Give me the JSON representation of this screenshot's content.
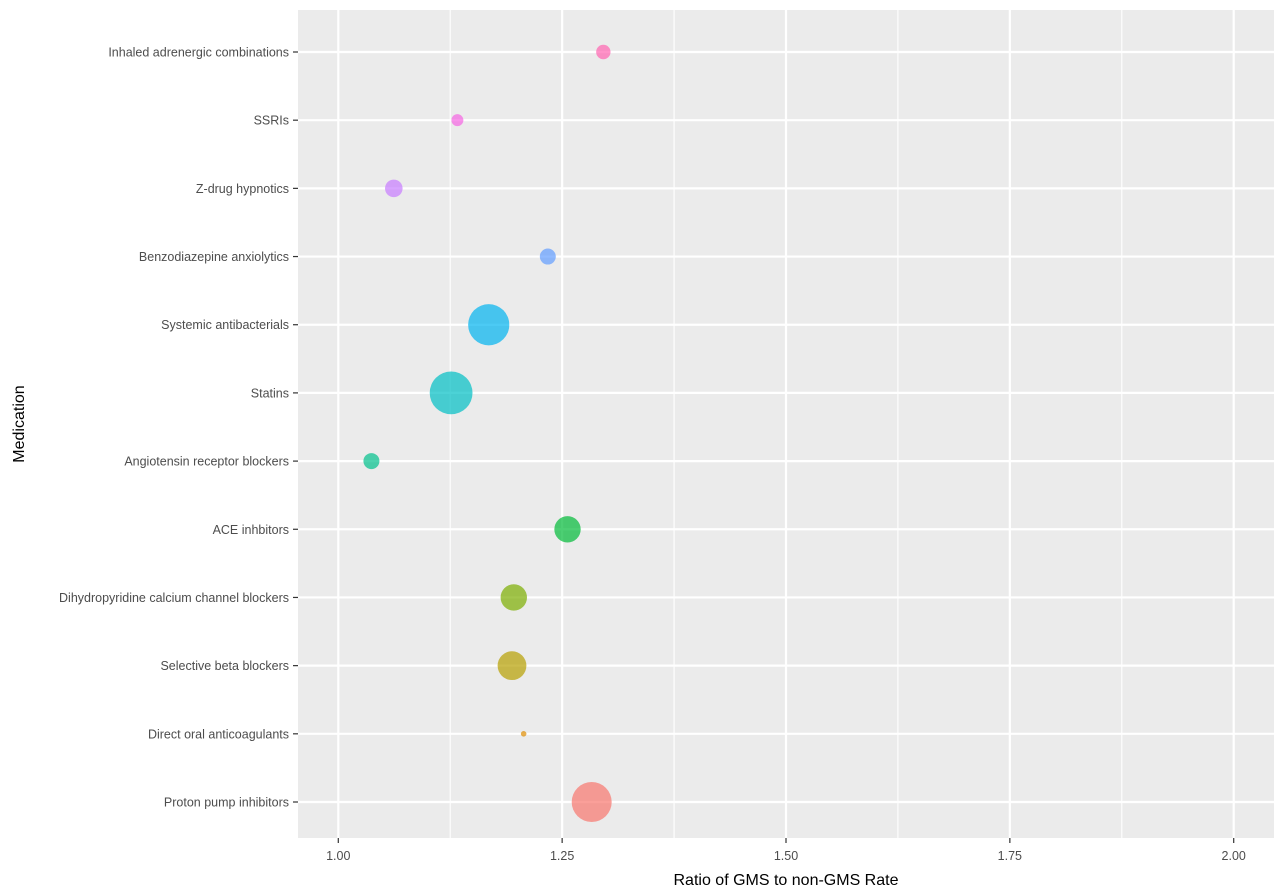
{
  "chart_data": {
    "type": "scatter",
    "title": "",
    "xlabel": "Ratio of GMS to non-GMS Rate",
    "ylabel": "Medication",
    "xlim": [
      0.955,
      2.045
    ],
    "x_ticks": [
      "1.00",
      "1.25",
      "1.50",
      "1.75",
      "2.00"
    ],
    "x_tick_values": [
      1.0,
      1.25,
      1.5,
      1.75,
      2.0
    ],
    "grid": true,
    "legend": "none",
    "categories": [
      "Proton pump inhibitors",
      "Direct oral anticoagulants",
      "Selective beta blockers",
      "Dihydropyridine calcium channel blockers",
      "ACE inhbitors",
      "Angiotensin receptor blockers",
      "Statins",
      "Systemic antibacterials",
      "Benzodiazepine anxiolytics",
      "Z-drug hypnotics",
      "SSRIs",
      "Inhaled adrenergic combinations"
    ],
    "points": [
      {
        "category": "Proton pump inhibitors",
        "x": 1.283,
        "relative_size": 1.0,
        "color": "#F8766D"
      },
      {
        "category": "Direct oral anticoagulants",
        "x": 1.207,
        "relative_size": 0.14,
        "color": "#DE8C00"
      },
      {
        "category": "Selective beta blockers",
        "x": 1.194,
        "relative_size": 0.72,
        "color": "#B79F00"
      },
      {
        "category": "Dihydropyridine calcium channel blockers",
        "x": 1.196,
        "relative_size": 0.66,
        "color": "#7CAE00"
      },
      {
        "category": "ACE inhbitors",
        "x": 1.256,
        "relative_size": 0.66,
        "color": "#00BA38"
      },
      {
        "category": "Angiotensin receptor blockers",
        "x": 1.037,
        "relative_size": 0.4,
        "color": "#00C08B"
      },
      {
        "category": "Statins",
        "x": 1.126,
        "relative_size": 1.07,
        "color": "#00BFC4"
      },
      {
        "category": "Systemic antibacterials",
        "x": 1.168,
        "relative_size": 1.03,
        "color": "#00B4F0"
      },
      {
        "category": "Benzodiazepine anxiolytics",
        "x": 1.234,
        "relative_size": 0.4,
        "color": "#619CFF"
      },
      {
        "category": "Z-drug hypnotics",
        "x": 1.062,
        "relative_size": 0.44,
        "color": "#C77CFF"
      },
      {
        "category": "SSRIs",
        "x": 1.133,
        "relative_size": 0.3,
        "color": "#F564E3"
      },
      {
        "category": "Inhaled adrenergic combinations",
        "x": 1.296,
        "relative_size": 0.36,
        "color": "#FF64B0"
      }
    ]
  }
}
